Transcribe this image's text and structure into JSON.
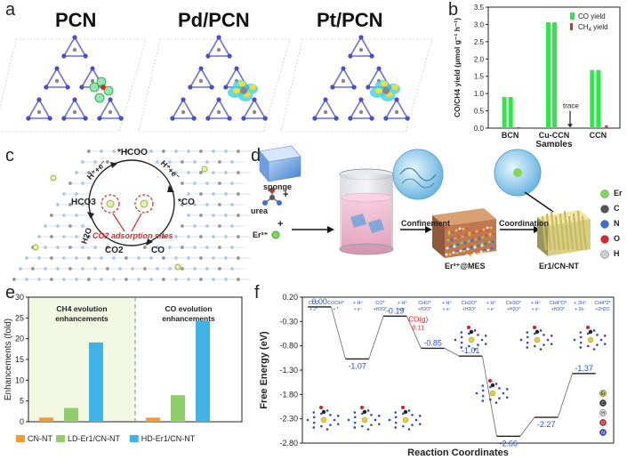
{
  "panels": {
    "a": {
      "letter": "a",
      "titles": [
        "PCN",
        "Pd/PCN",
        "Pt/PCN"
      ]
    },
    "b": {
      "letter": "b",
      "legend": {
        "co": "CO yield",
        "ch4_main": "CH",
        "ch4_sub": "4",
        "ch4_tail": " yield"
      },
      "annotation": "trace",
      "ylabel": "CO/CH4 yield (μmol g⁻¹ h⁻¹)",
      "colors": {
        "co": "#2ee84a",
        "ch4": "#c0392b"
      }
    },
    "c": {
      "letter": "c",
      "labels": {
        "hcoo": "*HCOO",
        "co": "*CO",
        "hco3": "HCO3",
        "co2": "CO2",
        "h2o": "H2O",
        "he1": "H⁺+e⁻",
        "he2": "H⁺+e⁻",
        "co_bottom": "CO",
        "sites": "CO2 adsorption sites"
      }
    },
    "d": {
      "letter": "d",
      "labels": {
        "sponge": "sponge",
        "urea": "urea",
        "er": "Er³⁺",
        "plus1": "+",
        "plus2": "+",
        "confinement": "Confinement",
        "coordination": "Coordination",
        "mes": "Er³⁺@MES",
        "product": "Er1/CN-NT"
      },
      "legend": [
        {
          "label": "Er",
          "color": "#7ed957"
        },
        {
          "label": "C",
          "color": "#555555"
        },
        {
          "label": "N",
          "color": "#3a6fd8"
        },
        {
          "label": "O",
          "color": "#d62828"
        },
        {
          "label": "H",
          "color": "#cfcfcf"
        }
      ]
    },
    "e": {
      "letter": "e"
    },
    "f": {
      "letter": "f",
      "co_gas_label": "CO(g)",
      "co_gas_value": "0.11",
      "step_labels": [
        {
          "top": "CO2",
          "sub": "+ 2*"
        },
        {
          "top": "COOH*",
          "sub": "+ *"
        },
        {
          "top": "+ H⁺",
          "sub": "+ e⁻"
        },
        {
          "top": "CO*",
          "sub": "+H2O*"
        },
        {
          "top": "+ H⁺",
          "sub": "+ e⁻"
        },
        {
          "top": "CHO*",
          "sub": "+H2O*"
        },
        {
          "top": "+ H⁺",
          "sub": "+ e⁻"
        },
        {
          "top": "CH2O*",
          "sub": "+H2O*"
        },
        {
          "top": "+ H⁺",
          "sub": "+ e⁻"
        },
        {
          "top": "CH3O*",
          "sub": "+H2O*"
        },
        {
          "top": "+ H⁺",
          "sub": "+ e⁻"
        },
        {
          "top": "CH4*O*",
          "sub": "+H2O*"
        },
        {
          "top": "+ 2H⁺",
          "sub": "+ 2e⁻"
        },
        {
          "top": "CH4*2*",
          "sub": "+2H2O"
        }
      ],
      "legend": [
        {
          "label": "Er",
          "color": "#c8c84a"
        },
        {
          "label": "C",
          "color": "#333333"
        },
        {
          "label": "H",
          "color": "#dddddd"
        },
        {
          "label": "O",
          "color": "#cc2222"
        },
        {
          "label": "N",
          "color": "#3344cc"
        }
      ]
    }
  },
  "chart_data": [
    {
      "id": "b",
      "type": "bar",
      "title": "",
      "xlabel": "Samples",
      "ylabel": "CO/CH4 yield (μmol g⁻¹ h⁻¹)",
      "ylim": [
        0,
        3.5
      ],
      "yticks": [
        "0.0",
        "0.5",
        "1.0",
        "1.5",
        "2.0",
        "2.5",
        "3.0",
        "3.5"
      ],
      "categories": [
        "BCN",
        "Cu-CCN",
        "CCN"
      ],
      "series": [
        {
          "name": "CO yield",
          "values": [
            0.9,
            3.06,
            1.68
          ],
          "color": "#2ee84a"
        },
        {
          "name": "CH4 yield",
          "values": [
            0.03,
            0.0,
            0.08
          ],
          "color": "#c0392b"
        }
      ],
      "legend_position": "top-right"
    },
    {
      "id": "e",
      "type": "bar",
      "title": "",
      "xlabel": "",
      "ylabel": "Enhancements (fold)",
      "ylim": [
        0,
        30
      ],
      "yticks": [
        "0",
        "5",
        "10",
        "15",
        "20",
        "25",
        "30"
      ],
      "groups": [
        "CH4 evolution enhancements",
        "CO evolution enhancements"
      ],
      "series": [
        {
          "name": "CN-NT",
          "values": [
            1,
            1
          ],
          "color": "#f39c32"
        },
        {
          "name": "LD-Er1/CN-NT",
          "values": [
            3.3,
            6.4
          ],
          "color": "#8fce6a"
        },
        {
          "name": "HD-Er1/CN-NT",
          "values": [
            19.1,
            24.3
          ],
          "color": "#3fb3e6"
        }
      ],
      "legend_position": "bottom"
    },
    {
      "id": "f",
      "type": "line",
      "title": "",
      "xlabel": "Reaction Coordinates",
      "ylabel": "Free Energy (eV)",
      "ylim": [
        -2.8,
        0.2
      ],
      "yticks": [
        "0.20",
        "-0.30",
        "-0.80",
        "-1.30",
        "-1.80",
        "-2.30",
        "-2.80"
      ],
      "levels": [
        {
          "value": 0.0,
          "label": "0.00"
        },
        {
          "value": -1.07,
          "label": "-1.07"
        },
        {
          "value": -0.19,
          "label": "-0.19"
        },
        {
          "value": -0.85,
          "label": "-0.85"
        },
        {
          "value": -1.01,
          "label": "-1.01"
        },
        {
          "value": -2.66,
          "label": "-2.66"
        },
        {
          "value": -2.27,
          "label": "-2.27"
        },
        {
          "value": -1.37,
          "label": "-1.37"
        }
      ],
      "series_color": "#2a4fd8"
    }
  ]
}
